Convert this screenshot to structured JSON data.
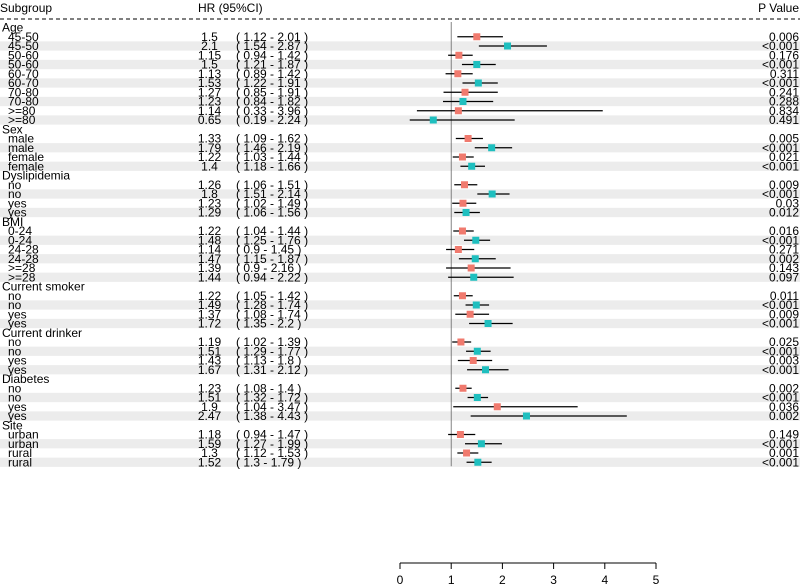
{
  "chart_data": {
    "type": "forest",
    "columns": {
      "subgroup": "Subgroup",
      "hr": "HR (95%CI)",
      "p": "P Value"
    },
    "x_ticks": [
      0,
      1,
      2,
      3,
      4,
      5
    ],
    "xlim": [
      0,
      5
    ],
    "reference_line": 1,
    "colors": {
      "series_a": "#f07a6e",
      "series_b": "#1fbfbf",
      "band": "#ececec",
      "line": "#000000",
      "ref_line": "#666666"
    },
    "groups": [
      {
        "name": "Age",
        "rows": [
          {
            "label": "45-50",
            "hr": "1.5",
            "lo": "1.12",
            "hi": "2.01",
            "p": "0.006",
            "series": "a"
          },
          {
            "label": "45-50",
            "hr": "2.1",
            "lo": "1.54",
            "hi": "2.87",
            "p": "<0.001",
            "series": "b"
          },
          {
            "label": "50-60",
            "hr": "1.15",
            "lo": "0.94",
            "hi": "1.42",
            "p": "0.176",
            "series": "a"
          },
          {
            "label": "50-60",
            "hr": "1.5",
            "lo": "1.21",
            "hi": "1.87",
            "p": "<0.001",
            "series": "b"
          },
          {
            "label": "60-70",
            "hr": "1.13",
            "lo": "0.89",
            "hi": "1.42",
            "p": "0.311",
            "series": "a"
          },
          {
            "label": "60-70",
            "hr": "1.53",
            "lo": "1.22",
            "hi": "1.91",
            "p": "<0.001",
            "series": "b"
          },
          {
            "label": "70-80",
            "hr": "1.27",
            "lo": "0.85",
            "hi": "1.91",
            "p": "0.241",
            "series": "a"
          },
          {
            "label": "70-80",
            "hr": "1.23",
            "lo": "0.84",
            "hi": "1.82",
            "p": "0.288",
            "series": "b"
          },
          {
            "label": ">=80",
            "hr": "1.14",
            "lo": "0.33",
            "hi": "3.96",
            "p": "0.834",
            "series": "a"
          },
          {
            "label": ">=80",
            "hr": "0.65",
            "lo": "0.19",
            "hi": "2.24",
            "p": "0.491",
            "series": "b"
          }
        ]
      },
      {
        "name": "Sex",
        "rows": [
          {
            "label": "male",
            "hr": "1.33",
            "lo": "1.09",
            "hi": "1.62",
            "p": "0.005",
            "series": "a"
          },
          {
            "label": "male",
            "hr": "1.79",
            "lo": "1.46",
            "hi": "2.19",
            "p": "<0.001",
            "series": "b"
          },
          {
            "label": "female",
            "hr": "1.22",
            "lo": "1.03",
            "hi": "1.44",
            "p": "0.021",
            "series": "a"
          },
          {
            "label": "female",
            "hr": "1.4",
            "lo": "1.18",
            "hi": "1.66",
            "p": "<0.001",
            "series": "b"
          }
        ]
      },
      {
        "name": "Dyslipidemia",
        "rows": [
          {
            "label": "no",
            "hr": "1.26",
            "lo": "1.06",
            "hi": "1.51",
            "p": "0.009",
            "series": "a"
          },
          {
            "label": "no",
            "hr": "1.8",
            "lo": "1.51",
            "hi": "2.14",
            "p": "<0.001",
            "series": "b"
          },
          {
            "label": "yes",
            "hr": "1.23",
            "lo": "1.02",
            "hi": "1.49",
            "p": "0.03",
            "series": "a"
          },
          {
            "label": "yes",
            "hr": "1.29",
            "lo": "1.06",
            "hi": "1.56",
            "p": "0.012",
            "series": "b"
          }
        ]
      },
      {
        "name": "BMI",
        "rows": [
          {
            "label": "0-24",
            "hr": "1.22",
            "lo": "1.04",
            "hi": "1.44",
            "p": "0.016",
            "series": "a"
          },
          {
            "label": "0-24",
            "hr": "1.48",
            "lo": "1.25",
            "hi": "1.76",
            "p": "<0.001",
            "series": "b"
          },
          {
            "label": "24-28",
            "hr": "1.14",
            "lo": "0.9",
            "hi": "1.45",
            "p": "0.271",
            "series": "a"
          },
          {
            "label": "24-28",
            "hr": "1.47",
            "lo": "1.15",
            "hi": "1.87",
            "p": "0.002",
            "series": "b"
          },
          {
            "label": ">=28",
            "hr": "1.39",
            "lo": "0.9",
            "hi": "2.16",
            "p": "0.143",
            "series": "a"
          },
          {
            "label": ">=28",
            "hr": "1.44",
            "lo": "0.94",
            "hi": "2.22",
            "p": "0.097",
            "series": "b"
          }
        ]
      },
      {
        "name": "Current smoker",
        "rows": [
          {
            "label": "no",
            "hr": "1.22",
            "lo": "1.05",
            "hi": "1.42",
            "p": "0.011",
            "series": "a"
          },
          {
            "label": "no",
            "hr": "1.49",
            "lo": "1.28",
            "hi": "1.74",
            "p": "<0.001",
            "series": "b"
          },
          {
            "label": "yes",
            "hr": "1.37",
            "lo": "1.08",
            "hi": "1.74",
            "p": "0.009",
            "series": "a"
          },
          {
            "label": "yes",
            "hr": "1.72",
            "lo": "1.35",
            "hi": "2.2",
            "p": "<0.001",
            "series": "b"
          }
        ]
      },
      {
        "name": "Current drinker",
        "rows": [
          {
            "label": "no",
            "hr": "1.19",
            "lo": "1.02",
            "hi": "1.39",
            "p": "0.025",
            "series": "a"
          },
          {
            "label": "no",
            "hr": "1.51",
            "lo": "1.29",
            "hi": "1.77",
            "p": "<0.001",
            "series": "b"
          },
          {
            "label": "yes",
            "hr": "1.43",
            "lo": "1.13",
            "hi": "1.8",
            "p": "0.003",
            "series": "a"
          },
          {
            "label": "yes",
            "hr": "1.67",
            "lo": "1.31",
            "hi": "2.12",
            "p": "<0.001",
            "series": "b"
          }
        ]
      },
      {
        "name": "Diabetes",
        "rows": [
          {
            "label": "no",
            "hr": "1.23",
            "lo": "1.08",
            "hi": "1.4",
            "p": "0.002",
            "series": "a"
          },
          {
            "label": "no",
            "hr": "1.51",
            "lo": "1.32",
            "hi": "1.72",
            "p": "<0.001",
            "series": "b"
          },
          {
            "label": "yes",
            "hr": "1.9",
            "lo": "1.04",
            "hi": "3.47",
            "p": "0.036",
            "series": "a"
          },
          {
            "label": "yes",
            "hr": "2.47",
            "lo": "1.38",
            "hi": "4.43",
            "p": "0.002",
            "series": "b"
          }
        ]
      },
      {
        "name": "Site",
        "rows": [
          {
            "label": "urban",
            "hr": "1.18",
            "lo": "0.94",
            "hi": "1.47",
            "p": "0.149",
            "series": "a"
          },
          {
            "label": "urban",
            "hr": "1.59",
            "lo": "1.27",
            "hi": "1.99",
            "p": "<0.001",
            "series": "b"
          },
          {
            "label": "rural",
            "hr": "1.3",
            "lo": "1.12",
            "hi": "1.53",
            "p": "0.001",
            "series": "a"
          },
          {
            "label": "rural",
            "hr": "1.52",
            "lo": "1.3",
            "hi": "1.79",
            "p": "<0.001",
            "series": "b"
          }
        ]
      }
    ]
  }
}
